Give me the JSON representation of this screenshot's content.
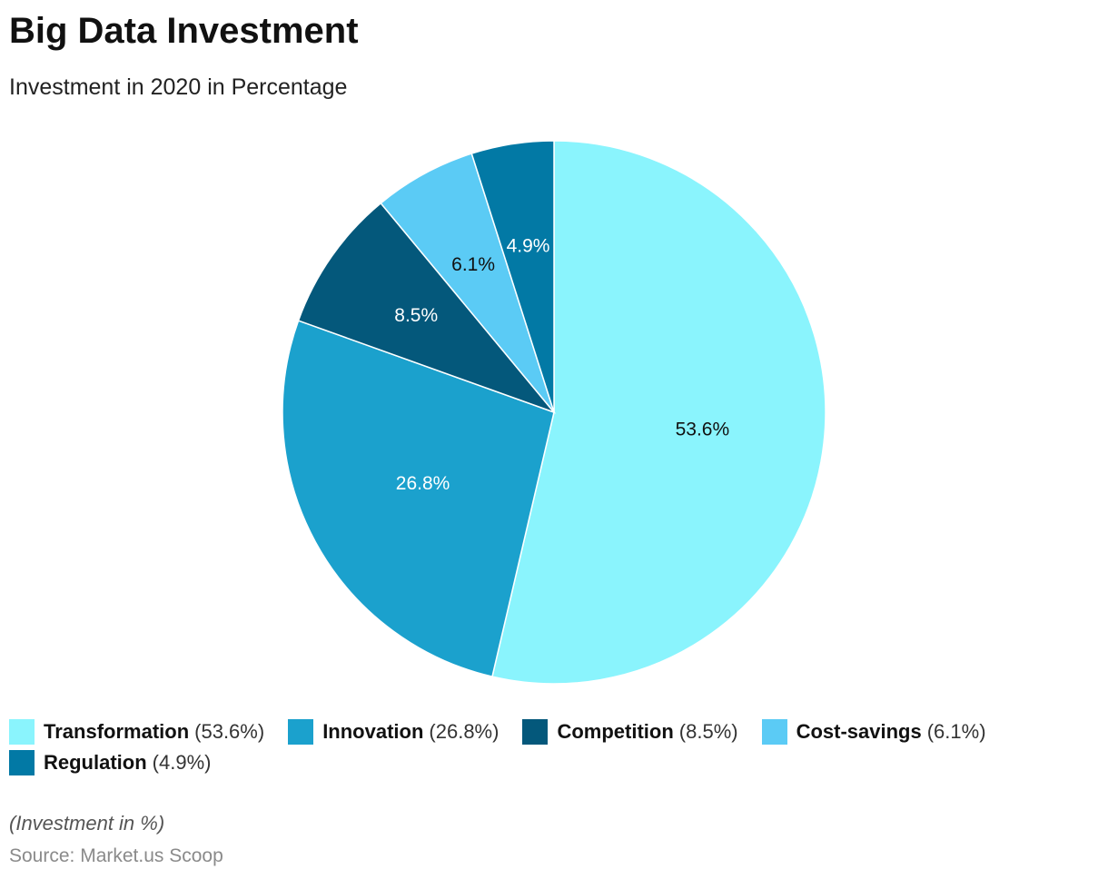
{
  "chart_data": {
    "type": "pie",
    "title": "Big Data Investment",
    "subtitle": "Investment in 2020 in Percentage",
    "categories": [
      "Transformation",
      "Innovation",
      "Competition",
      "Cost-savings",
      "Regulation"
    ],
    "values": [
      53.6,
      26.8,
      8.5,
      6.1,
      4.9
    ],
    "data_labels": [
      "53.6%",
      "26.8%",
      "8.5%",
      "6.1%",
      "4.9%"
    ],
    "legend_values": [
      "(53.6%)",
      "(26.8%)",
      "(8.5%)",
      "(6.1%)",
      "(4.9%)"
    ],
    "colors": [
      "#8af4fd",
      "#1ba1cd",
      "#04587b",
      "#5bcbf5",
      "#0279a5"
    ],
    "label_colors": [
      "#111111",
      "#ffffff",
      "#ffffff",
      "#111111",
      "#ffffff"
    ],
    "legend_placement": "bottom",
    "start_direction": "top",
    "direction": "clockwise"
  },
  "note": "(Investment in %)",
  "source": "Source: Market.us Scoop"
}
